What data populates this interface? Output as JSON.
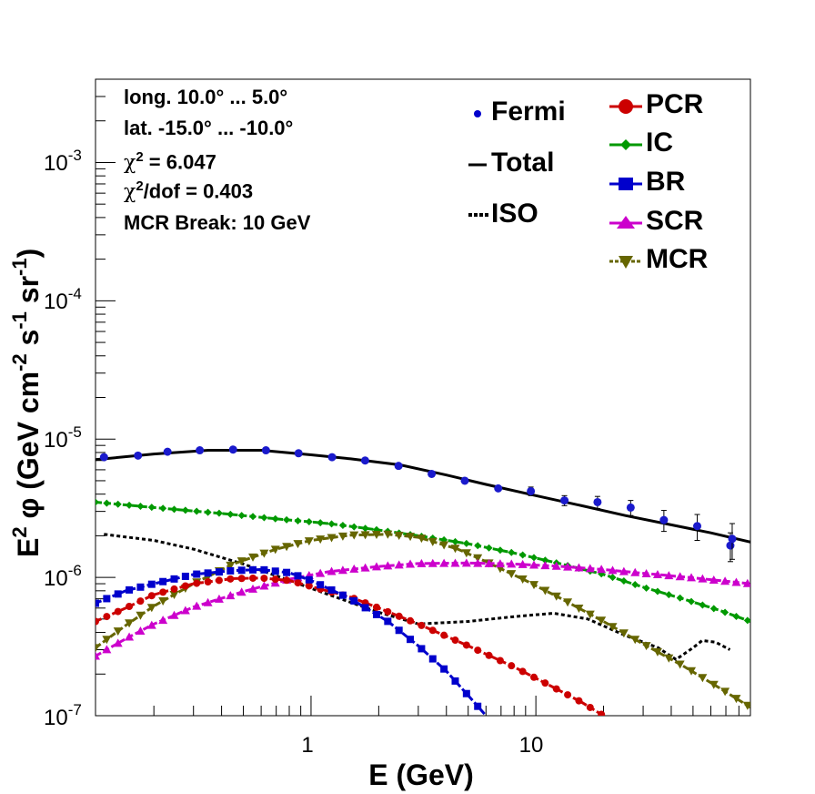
{
  "chart_data": {
    "type": "line",
    "x_scale": "log",
    "y_scale": "log",
    "xlabel": "E (GeV)",
    "ylabel_parts": [
      "E",
      "2",
      " φ (GeV cm",
      "-2",
      " s",
      "-1",
      " sr",
      "-1",
      ")"
    ],
    "xlim": [
      0.11,
      90
    ],
    "ylim": [
      1e-07,
      0.004
    ],
    "x_tick_labels": [
      {
        "v": 1,
        "t": "1"
      },
      {
        "v": 10,
        "t": "10"
      }
    ],
    "y_tick_labels": [
      {
        "v": 1e-07,
        "base": "10",
        "exp": "-7"
      },
      {
        "v": 1e-06,
        "base": "10",
        "exp": "-6"
      },
      {
        "v": 1e-05,
        "base": "10",
        "exp": "-5"
      },
      {
        "v": 0.0001,
        "base": "10",
        "exp": "-4"
      },
      {
        "v": 0.001,
        "base": "10",
        "exp": "-3"
      }
    ],
    "annotations": {
      "line1": "long. 10.0° ... 5.0°",
      "line2": "lat. -15.0° ... -10.0°",
      "chi2_sym": "χ",
      "chi2_sup": "2",
      "chi2_val": " = 6.047",
      "chidof_sup": "2",
      "chidof_val": "/dof = 0.403",
      "line5": "MCR Break: 10 GeV"
    },
    "legend": [
      {
        "name": "Fermi",
        "color": "#0000cc",
        "style": "point"
      },
      {
        "name": "Total",
        "color": "#000000",
        "style": "line"
      },
      {
        "name": "ISO",
        "color": "#000000",
        "style": "dotted"
      },
      {
        "name": "PCR",
        "color": "#cc0000",
        "style": "circle"
      },
      {
        "name": "IC",
        "color": "#009900",
        "style": "diamond"
      },
      {
        "name": "BR",
        "color": "#0000cc",
        "style": "square"
      },
      {
        "name": "SCR",
        "color": "#cc00cc",
        "style": "triangle"
      },
      {
        "name": "MCR",
        "color": "#666600",
        "style": "triangle-down"
      }
    ],
    "fermi": {
      "color": "#1a1acc",
      "x": [
        0.12,
        0.17,
        0.23,
        0.32,
        0.45,
        0.63,
        0.88,
        1.24,
        1.74,
        2.45,
        3.44,
        4.83,
        6.8,
        9.5,
        13.4,
        18.8,
        26.4,
        37.1,
        52.2,
        73.3
      ],
      "y": [
        7.4e-06,
        7.6e-06,
        8.1e-06,
        8.3e-06,
        8.4e-06,
        8.3e-06,
        7.9e-06,
        7.4e-06,
        7e-06,
        6.4e-06,
        5.6e-06,
        5e-06,
        4.4e-06,
        4.2e-06,
        3.6e-06,
        3.5e-06,
        3.2e-06,
        2.6e-06,
        2.35e-06,
        1.7e-06
      ],
      "err": [
        0,
        0,
        0,
        0,
        0,
        0,
        0,
        0,
        0,
        0,
        0,
        1.5e-07,
        1.5e-07,
        3e-07,
        3e-07,
        3.5e-07,
        4e-07,
        4.5e-07,
        5e-07,
        4e-07
      ]
    },
    "overflow_point": {
      "x": 73.3,
      "y": 1.9e-06,
      "err": 5.5e-07
    },
    "series": [
      {
        "name": "Total",
        "color": "#000000",
        "style": "solid",
        "marker": "none",
        "x": [
          0.11,
          0.2,
          0.35,
          0.6,
          1.0,
          1.5,
          2.5,
          4,
          6,
          10,
          16,
          25,
          40,
          60,
          90
        ],
        "y": [
          7.1e-06,
          7.8e-06,
          8.3e-06,
          8.3e-06,
          7.7e-06,
          7.2e-06,
          6.5e-06,
          5.5e-06,
          4.7e-06,
          3.9e-06,
          3.3e-06,
          2.8e-06,
          2.4e-06,
          2.1e-06,
          1.8e-06
        ]
      },
      {
        "name": "ISO",
        "color": "#000000",
        "style": "dotted",
        "marker": "none",
        "x": [
          0.12,
          0.2,
          0.3,
          0.5,
          0.8,
          1.2,
          2,
          3,
          5,
          8,
          12,
          17,
          25,
          35,
          42,
          50,
          55,
          63,
          73
        ],
        "y": [
          2.05e-06,
          1.85e-06,
          1.6e-06,
          1.25e-06,
          9.5e-07,
          7.5e-07,
          5.6e-07,
          4.6e-07,
          4.8e-07,
          5.2e-07,
          5.5e-07,
          5e-07,
          3.8e-07,
          3.1e-07,
          2.55e-07,
          3.1e-07,
          3.5e-07,
          3.4e-07,
          3e-07
        ]
      },
      {
        "name": "IC",
        "color": "#009900",
        "style": "dashed",
        "marker": "diamond",
        "x": [
          0.11,
          0.2,
          0.4,
          0.7,
          1.2,
          2,
          3,
          5,
          8,
          13,
          20,
          30,
          45,
          65,
          90
        ],
        "y": [
          3.5e-06,
          3.2e-06,
          2.9e-06,
          2.65e-06,
          2.45e-06,
          2.2e-06,
          2e-06,
          1.75e-06,
          1.5e-06,
          1.25e-06,
          1.05e-06,
          8.5e-07,
          7e-07,
          5.8e-07,
          4.8e-07
        ]
      },
      {
        "name": "MCR",
        "color": "#666600",
        "style": "dashed",
        "marker": "triangle-down",
        "x": [
          0.11,
          0.15,
          0.2,
          0.3,
          0.45,
          0.7,
          1.0,
          1.5,
          2.2,
          3,
          4.5,
          6,
          9,
          13,
          20,
          30,
          45,
          65,
          90
        ],
        "y": [
          3.1e-07,
          4.5e-07,
          6.2e-07,
          9e-07,
          1.25e-06,
          1.6e-06,
          1.85e-06,
          2.02e-06,
          2.05e-06,
          1.95e-06,
          1.6e-06,
          1.3e-06,
          9.5e-07,
          7e-07,
          4.8e-07,
          3.3e-07,
          2.3e-07,
          1.6e-07,
          1.15e-07
        ]
      },
      {
        "name": "SCR",
        "color": "#cc00cc",
        "style": "dashed",
        "marker": "triangle",
        "x": [
          0.11,
          0.15,
          0.2,
          0.3,
          0.5,
          0.8,
          1.2,
          2,
          3,
          5,
          8,
          13,
          20,
          30,
          45,
          65,
          90
        ],
        "y": [
          2.7e-07,
          3.6e-07,
          4.6e-07,
          6.1e-07,
          7.9e-07,
          9.7e-07,
          1.1e-06,
          1.2e-06,
          1.26e-06,
          1.27e-06,
          1.25e-06,
          1.2e-06,
          1.14e-06,
          1.07e-06,
          1.01e-06,
          9.5e-07,
          9e-07
        ]
      },
      {
        "name": "PCR",
        "color": "#cc0000",
        "style": "dashed",
        "marker": "circle",
        "x": [
          0.11,
          0.15,
          0.2,
          0.3,
          0.45,
          0.6,
          0.8,
          1.0,
          1.5,
          2,
          3,
          5,
          8,
          12,
          16,
          20
        ],
        "y": [
          4.8e-07,
          6e-07,
          7.5e-07,
          9e-07,
          9.8e-07,
          9.9e-07,
          9.5e-07,
          8.6e-07,
          7.2e-07,
          6e-07,
          4.6e-07,
          3.2e-07,
          2.25e-07,
          1.6e-07,
          1.25e-07,
          1e-07
        ]
      },
      {
        "name": "BR",
        "color": "#0000cc",
        "style": "dashed",
        "marker": "square",
        "x": [
          0.11,
          0.15,
          0.2,
          0.3,
          0.45,
          0.6,
          0.8,
          1.0,
          1.5,
          2.2,
          3,
          4,
          5,
          6
        ],
        "y": [
          6.5e-07,
          8e-07,
          9e-07,
          1.05e-06,
          1.12e-06,
          1.14e-06,
          1.08e-06,
          9.5e-07,
          7e-07,
          4.8e-07,
          3.2e-07,
          2.1e-07,
          1.4e-07,
          1e-07
        ]
      }
    ]
  }
}
